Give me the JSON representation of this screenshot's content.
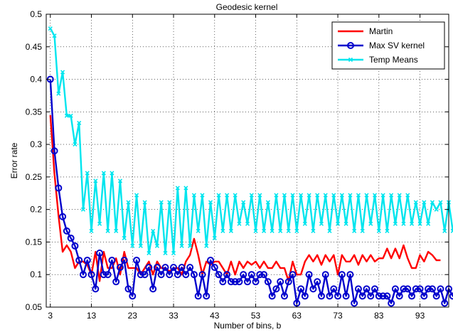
{
  "chart_data": {
    "type": "line",
    "title": "Geodesic kernel",
    "xlabel": "Number of bins, b",
    "ylabel": "Error rate",
    "xlim": [
      2,
      100
    ],
    "ylim": [
      0.05,
      0.5
    ],
    "xticks": [
      3,
      13,
      23,
      33,
      43,
      53,
      63,
      73,
      83,
      93
    ],
    "yticks": [
      0.05,
      0.1,
      0.15,
      0.2,
      0.25,
      0.3,
      0.35,
      0.4,
      0.45,
      0.5
    ],
    "grid": true,
    "legend_position": "top-right",
    "x_start": 3,
    "series": [
      {
        "name": "Martin",
        "color": "#ff0000",
        "marker": "none",
        "values": [
          0.345,
          0.255,
          0.19,
          0.135,
          0.145,
          0.135,
          0.11,
          0.12,
          0.12,
          0.115,
          0.1,
          0.135,
          0.09,
          0.135,
          0.11,
          0.11,
          0.125,
          0.1,
          0.135,
          0.11,
          0.11,
          0.11,
          0.1,
          0.11,
          0.12,
          0.1,
          0.12,
          0.11,
          0.11,
          0.105,
          0.11,
          0.11,
          0.1,
          0.12,
          0.13,
          0.155,
          0.13,
          0.1,
          0.12,
          0.115,
          0.12,
          0.12,
          0.11,
          0.1,
          0.12,
          0.1,
          0.12,
          0.11,
          0.12,
          0.115,
          0.12,
          0.11,
          0.12,
          0.11,
          0.11,
          0.12,
          0.11,
          0.11,
          0.09,
          0.12,
          0.1,
          0.1,
          0.12,
          0.13,
          0.12,
          0.13,
          0.115,
          0.13,
          0.12,
          0.13,
          0.1,
          0.13,
          0.12,
          0.12,
          0.13,
          0.115,
          0.13,
          0.12,
          0.13,
          0.12,
          0.125,
          0.125,
          0.14,
          0.125,
          0.14,
          0.125,
          0.145,
          0.125,
          0.11,
          0.11,
          0.13,
          0.12,
          0.135,
          0.13,
          0.122,
          0.122
        ]
      },
      {
        "name": "Max SV kernel",
        "color": "#0000cc",
        "marker": "circle",
        "values": [
          0.4,
          0.29,
          0.233,
          0.189,
          0.167,
          0.156,
          0.144,
          0.122,
          0.1,
          0.122,
          0.1,
          0.078,
          0.133,
          0.1,
          0.1,
          0.122,
          0.089,
          0.111,
          0.122,
          0.078,
          0.067,
          0.122,
          0.1,
          0.1,
          0.111,
          0.078,
          0.111,
          0.1,
          0.111,
          0.1,
          0.111,
          0.1,
          0.111,
          0.1,
          0.111,
          0.1,
          0.067,
          0.1,
          0.067,
          0.122,
          0.111,
          0.1,
          0.089,
          0.1,
          0.089,
          0.089,
          0.089,
          0.1,
          0.089,
          0.1,
          0.089,
          0.1,
          0.1,
          0.089,
          0.067,
          0.078,
          0.089,
          0.067,
          0.089,
          0.1,
          0.056,
          0.078,
          0.067,
          0.1,
          0.078,
          0.089,
          0.067,
          0.1,
          0.067,
          0.078,
          0.067,
          0.1,
          0.067,
          0.1,
          0.056,
          0.078,
          0.067,
          0.078,
          0.067,
          0.078,
          0.067,
          0.067,
          0.067,
          0.056,
          0.078,
          0.067,
          0.078,
          0.078,
          0.067,
          0.078,
          0.078,
          0.067,
          0.078,
          0.078,
          0.067,
          0.078,
          0.056,
          0.078,
          0.067,
          0.078,
          0.056,
          0.056,
          0.056
        ]
      },
      {
        "name": "Temp Means",
        "color": "#00e5ee",
        "marker": "x",
        "values": [
          0.478,
          0.467,
          0.378,
          0.411,
          0.344,
          0.344,
          0.3,
          0.333,
          0.2,
          0.256,
          0.167,
          0.244,
          0.178,
          0.256,
          0.167,
          0.256,
          0.167,
          0.244,
          0.156,
          0.211,
          0.144,
          0.222,
          0.144,
          0.211,
          0.133,
          0.167,
          0.144,
          0.211,
          0.133,
          0.211,
          0.133,
          0.233,
          0.144,
          0.233,
          0.144,
          0.222,
          0.167,
          0.222,
          0.144,
          0.211,
          0.156,
          0.222,
          0.167,
          0.222,
          0.167,
          0.222,
          0.178,
          0.211,
          0.178,
          0.222,
          0.167,
          0.222,
          0.167,
          0.211,
          0.167,
          0.222,
          0.167,
          0.222,
          0.167,
          0.222,
          0.167,
          0.222,
          0.178,
          0.222,
          0.167,
          0.222,
          0.178,
          0.222,
          0.167,
          0.222,
          0.178,
          0.222,
          0.178,
          0.222,
          0.167,
          0.222,
          0.167,
          0.222,
          0.178,
          0.222,
          0.167,
          0.222,
          0.167,
          0.222,
          0.178,
          0.222,
          0.178,
          0.222,
          0.178,
          0.211,
          0.178,
          0.211,
          0.178,
          0.211,
          0.2,
          0.211,
          0.167,
          0.211,
          0.167
        ]
      }
    ]
  }
}
